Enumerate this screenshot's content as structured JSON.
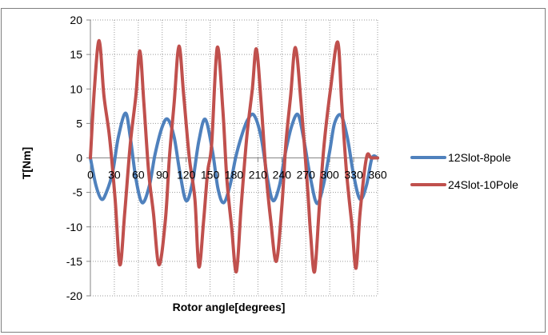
{
  "chart_data": {
    "type": "line",
    "title": "",
    "xlabel": "Rotor angle[degrees]",
    "ylabel": "T[Nm]",
    "xlim": [
      0,
      360
    ],
    "ylim": [
      -20,
      20
    ],
    "x_ticks": [
      0,
      30,
      60,
      90,
      120,
      150,
      180,
      210,
      240,
      270,
      300,
      330,
      360
    ],
    "x_tick_labels": [
      "0",
      "30",
      "60",
      "90",
      "120",
      "150",
      "180",
      "210",
      "240",
      "270",
      "300",
      "330",
      "360"
    ],
    "y_ticks": [
      -20,
      -15,
      -10,
      -5,
      0,
      5,
      10,
      15,
      20
    ],
    "y_tick_labels": [
      "-20",
      "-15",
      "-10",
      "-5",
      "0",
      "5",
      "10",
      "15",
      "20"
    ],
    "grid": true,
    "grid_style": "dotted",
    "legend_position": "right",
    "series": [
      {
        "name": "12Slot-8pole",
        "color": "#4f81bd",
        "x": [
          0,
          7,
          14,
          20,
          28,
          35,
          44,
          50,
          57,
          65,
          74,
          81,
          90,
          97,
          105,
          112,
          120,
          128,
          136,
          144,
          153,
          160,
          167,
          175,
          182,
          189,
          197,
          205,
          214,
          222,
          229,
          237,
          244,
          252,
          260,
          267,
          276,
          284,
          292,
          300,
          306,
          314,
          322,
          330,
          338,
          346,
          353,
          360
        ],
        "y": [
          0,
          -4,
          -6,
          -5,
          -2,
          3,
          6.5,
          3,
          -3,
          -6.5,
          -4,
          0.5,
          4.5,
          5.6,
          3,
          -2,
          -6.2,
          -3.5,
          2.5,
          5.6,
          1,
          -4.5,
          -6.5,
          -4,
          0,
          3,
          5.5,
          6.2,
          3,
          -3,
          -6.2,
          -4,
          0.5,
          4.5,
          6.3,
          3,
          -3,
          -6.6,
          -4,
          1,
          5,
          6.2,
          3,
          -2.5,
          -6,
          -4,
          0,
          0
        ]
      },
      {
        "name": "24Slot-10Pole",
        "color": "#c0504d",
        "x": [
          0,
          5,
          11,
          17,
          24,
          31,
          37,
          43,
          50,
          57,
          62,
          67,
          73,
          79,
          86,
          94,
          99,
          105,
          111,
          117,
          124,
          131,
          136,
          142,
          147,
          152,
          159,
          166,
          171,
          177,
          183,
          189,
          196,
          203,
          208,
          214,
          220,
          226,
          233,
          240,
          245,
          251,
          257,
          264,
          272,
          276,
          281,
          287,
          293,
          301,
          310,
          315,
          321,
          328,
          333,
          338,
          346,
          352,
          360
        ],
        "y": [
          0,
          10,
          17,
          9,
          3,
          -6,
          -15.5,
          -8,
          2,
          9,
          15.5,
          8,
          -2,
          -8,
          -15.5,
          -9,
          0,
          8,
          16.2,
          9,
          0,
          -6,
          -15.8,
          -9,
          -2,
          2,
          16,
          7,
          -3,
          -10,
          -16.5,
          -7,
          3,
          10,
          15.8,
          8,
          -2,
          -9,
          -15,
          -7,
          2,
          9,
          16,
          8,
          -4,
          -11,
          -16.5,
          -7,
          2,
          10,
          16.8,
          8,
          -2,
          -10,
          -16,
          -8,
          0,
          0,
          0
        ]
      }
    ]
  }
}
